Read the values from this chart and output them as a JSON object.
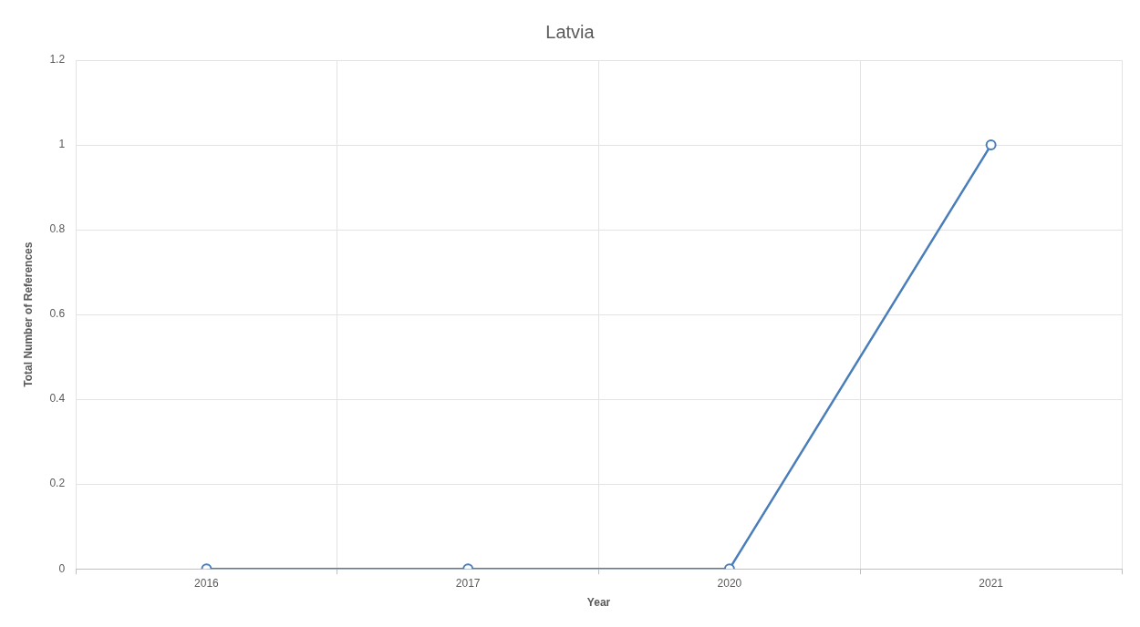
{
  "chart_data": {
    "type": "line",
    "title": "Latvia",
    "xlabel": "Year",
    "ylabel": "Total Number of References",
    "categories": [
      "2016",
      "2017",
      "2020",
      "2021"
    ],
    "series": [
      {
        "color": "#4a7ebb",
        "values": [
          0,
          0,
          0,
          1
        ]
      }
    ],
    "ylim": [
      0,
      1.2
    ],
    "yticks": [
      0,
      0.2,
      0.4,
      0.6,
      0.8,
      1,
      1.2
    ],
    "grid": true,
    "legend": false,
    "marker": "circle",
    "line_style": "solid"
  }
}
